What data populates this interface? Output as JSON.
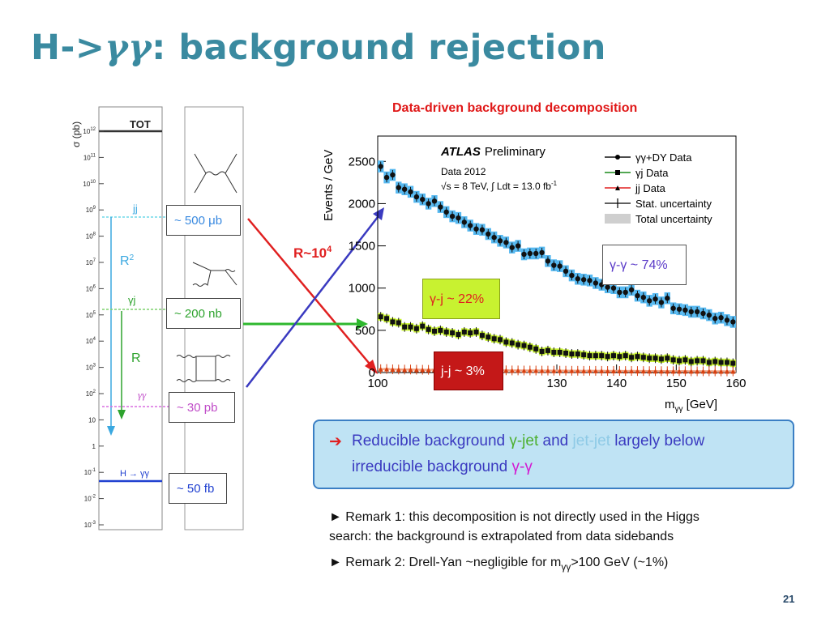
{
  "slide": {
    "title_pre": "H->",
    "title_gg": "γγ",
    "title_post": ": background rejection",
    "page_number": "21"
  },
  "xsec": {
    "ylabel": "σ (pb)",
    "tot": "TOT",
    "labels": {
      "jj": "jj",
      "r2": "R",
      "r2_sup": "2",
      "gj": "γj",
      "r": "R",
      "gg": "γγ",
      "hgg": "H → γγ"
    },
    "boxes": [
      "~ 500 μb",
      "~ 200 nb",
      "~ 30 pb",
      "~ 50 fb"
    ],
    "ticks": [
      "10",
      "10",
      "10",
      "10",
      "10",
      "10",
      "10",
      "10",
      "10",
      "10",
      "10",
      "10",
      "1",
      "10",
      "10",
      "10"
    ],
    "tick_exps": [
      "12",
      "11",
      "10",
      "9",
      "8",
      "7",
      "6",
      "5",
      "4",
      "3",
      "2",
      "",
      "",
      "-1",
      "-2",
      "-3"
    ]
  },
  "ratio": {
    "base": "R~10",
    "exp": "4"
  },
  "chart_data": {
    "type": "scatter",
    "title": "Data-driven background decomposition",
    "xlabel": "m",
    "xlabel_sub": "γγ",
    "xlabel_unit": " [GeV]",
    "ylabel": "Events / GeV",
    "xlim": [
      100,
      160
    ],
    "ylim": [
      0,
      2800
    ],
    "xticks": [
      100,
      110,
      120,
      130,
      140,
      150,
      160
    ],
    "xtick_labels": [
      "100",
      "",
      "",
      "130",
      "140",
      "150",
      "160"
    ],
    "yticks": [
      0,
      500,
      1000,
      1500,
      2000,
      2500
    ],
    "ytick_labels": [
      "0",
      "500",
      "1000",
      "1500",
      "2000",
      "2500"
    ],
    "atlas": "ATLAS",
    "preliminary": "Preliminary",
    "data_year": "Data 2012",
    "energy": "√s = 8 TeV, ∫ Ldt = 13.0 fb",
    "energy_exp": "-1",
    "x": [
      100.5,
      101.5,
      102.5,
      103.5,
      104.5,
      105.5,
      106.5,
      107.5,
      108.5,
      109.5,
      110.5,
      111.5,
      112.5,
      113.5,
      114.5,
      115.5,
      116.5,
      117.5,
      118.5,
      119.5,
      120.5,
      121.5,
      122.5,
      123.5,
      124.5,
      125.5,
      126.5,
      127.5,
      128.5,
      129.5,
      130.5,
      131.5,
      132.5,
      133.5,
      134.5,
      135.5,
      136.5,
      137.5,
      138.5,
      139.5,
      140.5,
      141.5,
      142.5,
      143.5,
      144.5,
      145.5,
      146.5,
      147.5,
      148.5,
      149.5,
      150.5,
      151.5,
      152.5,
      153.5,
      154.5,
      155.5,
      156.5,
      157.5,
      158.5,
      159.5
    ],
    "series": [
      {
        "name": "γγ+DY Data",
        "color": "#111111",
        "band": "#55b8f0",
        "marker": "circle",
        "values": [
          2440,
          2310,
          2340,
          2190,
          2170,
          2140,
          2080,
          2050,
          2000,
          2030,
          1960,
          1900,
          1850,
          1830,
          1780,
          1740,
          1700,
          1690,
          1640,
          1600,
          1560,
          1540,
          1480,
          1500,
          1400,
          1410,
          1410,
          1420,
          1320,
          1270,
          1260,
          1200,
          1150,
          1110,
          1100,
          1090,
          1060,
          1040,
          1010,
          1000,
          950,
          950,
          980,
          910,
          890,
          850,
          870,
          830,
          880,
          760,
          750,
          740,
          720,
          720,
          700,
          680,
          640,
          650,
          620,
          600
        ]
      },
      {
        "name": "γj Data",
        "color": "#111111",
        "band": "#c8f230",
        "marker": "square",
        "values": [
          660,
          640,
          600,
          590,
          540,
          540,
          520,
          550,
          510,
          490,
          500,
          480,
          470,
          450,
          480,
          470,
          480,
          440,
          420,
          400,
          390,
          360,
          350,
          330,
          320,
          300,
          280,
          250,
          260,
          240,
          240,
          230,
          220,
          220,
          210,
          200,
          200,
          200,
          190,
          200,
          190,
          200,
          180,
          190,
          180,
          170,
          170,
          160,
          170,
          150,
          140,
          150,
          130,
          140,
          140,
          120,
          130,
          120,
          120,
          110
        ]
      },
      {
        "name": "jj Data",
        "color": "#d84010",
        "band": "#f0a080",
        "marker": "triangle",
        "values": [
          40,
          42,
          38,
          36,
          35,
          36,
          34,
          33,
          32,
          34,
          31,
          30,
          30,
          29,
          30,
          29,
          28,
          28,
          27,
          27,
          26,
          26,
          25,
          25,
          24,
          24,
          24,
          23,
          23,
          22,
          22,
          22,
          21,
          21,
          20,
          21,
          20,
          20,
          19,
          19,
          19,
          18,
          19,
          18,
          18,
          17,
          17,
          17,
          16,
          16,
          16,
          16,
          15,
          15,
          15,
          15,
          14,
          14,
          14,
          14
        ]
      }
    ],
    "legend": [
      "γγ+DY Data",
      "γj Data",
      "jj Data",
      "Stat. uncertainty",
      "Total uncertainty"
    ],
    "legend_position": "top-right",
    "annotations": {
      "gg_pct": "γ-γ ~ 74%",
      "gj_pct": "γ-j ~ 22%",
      "jj_pct": "j-j ~ 3%"
    }
  },
  "callout": {
    "arrow": "➔",
    "l1_a": "Reducible background ",
    "l1_b": "γ-jet",
    "l1_c": " and ",
    "l1_d": "jet-jet",
    "l1_e": " largely below",
    "l2_a": "irreducible background ",
    "l2_b": "γ-γ"
  },
  "remarks": {
    "r1_l1": "► Remark 1: this decomposition is not directly used in the Higgs",
    "r1_l2": "search: the background is extrapolated from data sidebands",
    "r2_a": "► Remark 2: Drell-Yan ~negligible for m",
    "r2_sub": "γγ",
    "r2_b": ">100 GeV (~1%)"
  }
}
